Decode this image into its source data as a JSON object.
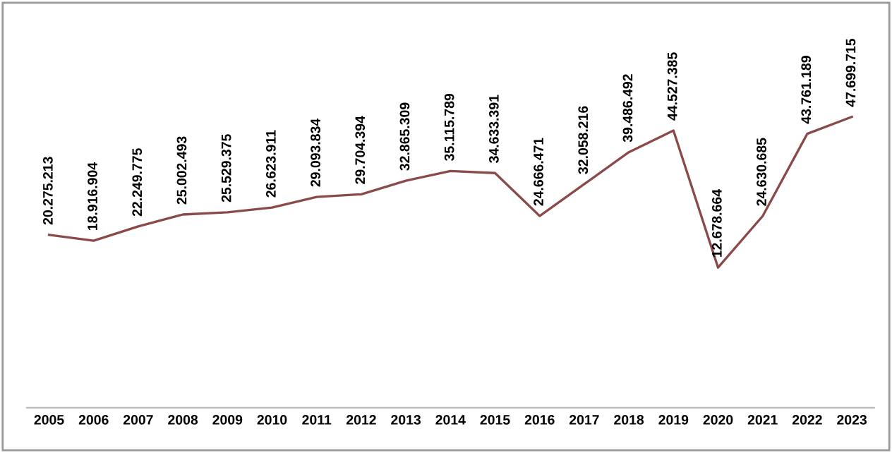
{
  "chart_data": {
    "type": "line",
    "categories": [
      "2005",
      "2006",
      "2007",
      "2008",
      "2009",
      "2010",
      "2011",
      "2012",
      "2013",
      "2014",
      "2015",
      "2016",
      "2017",
      "2018",
      "2019",
      "2020",
      "2021",
      "2022",
      "2023"
    ],
    "series": [
      {
        "color": "#8b4a4a",
        "values": [
          20275213,
          18916904,
          22249775,
          25002493,
          25529375,
          26623911,
          29093834,
          29704394,
          32865309,
          35115789,
          34633391,
          24666471,
          32058216,
          39486492,
          44527385,
          12678664,
          24630685,
          43761189,
          47699715
        ],
        "value_labels": [
          "20.275.213",
          "18.916.904",
          "22.249.775",
          "25.002.493",
          "25.529.375",
          "26.623.911",
          "29.093.834",
          "29.704.394",
          "32.865.309",
          "35.115.789",
          "34.633.391",
          "24.666.471",
          "32.058.216",
          "39.486.492",
          "44.527.385",
          "12.678.664",
          "24.630.685",
          "43.761.189",
          "47.699.715"
        ]
      }
    ],
    "grid": false,
    "legend": false,
    "marker": "none",
    "line_style": "solid",
    "tick_labels": "x"
  }
}
